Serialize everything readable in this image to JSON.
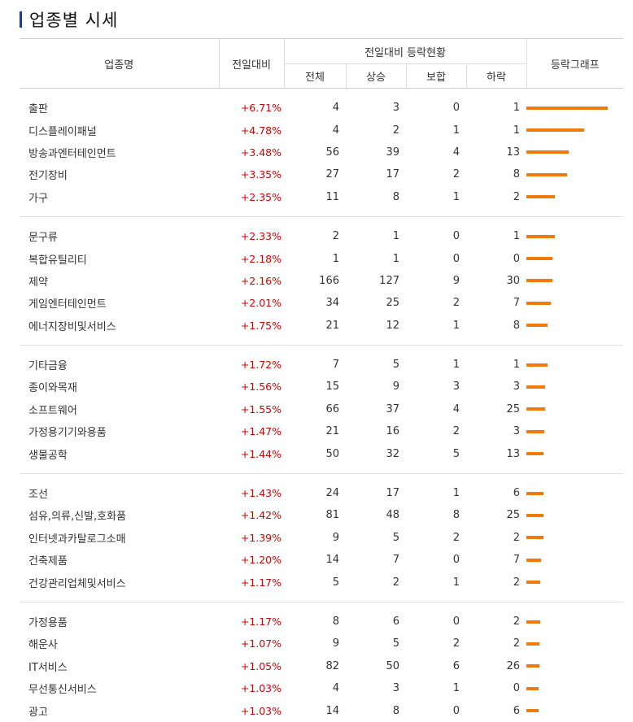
{
  "title": "업종별 시세",
  "headers": {
    "name": "업종명",
    "change": "전일대비",
    "group": "전일대비 등락현황",
    "total": "전체",
    "up": "상승",
    "flat": "보합",
    "down": "하락",
    "graph": "등락그래프"
  },
  "colors": {
    "rise": "#d60000",
    "bar": "#f07a0c",
    "accent": "#1d3a8f"
  },
  "groups": [
    [
      {
        "name": "출판",
        "change": "+6.71%",
        "change_pct": 6.71,
        "total": "4",
        "up": "3",
        "flat": "0",
        "down": "1"
      },
      {
        "name": "디스플레이패널",
        "change": "+4.78%",
        "change_pct": 4.78,
        "total": "4",
        "up": "2",
        "flat": "1",
        "down": "1"
      },
      {
        "name": "방송과엔터테인먼트",
        "change": "+3.48%",
        "change_pct": 3.48,
        "total": "56",
        "up": "39",
        "flat": "4",
        "down": "13"
      },
      {
        "name": "전기장비",
        "change": "+3.35%",
        "change_pct": 3.35,
        "total": "27",
        "up": "17",
        "flat": "2",
        "down": "8"
      },
      {
        "name": "가구",
        "change": "+2.35%",
        "change_pct": 2.35,
        "total": "11",
        "up": "8",
        "flat": "1",
        "down": "2"
      }
    ],
    [
      {
        "name": "문구류",
        "change": "+2.33%",
        "change_pct": 2.33,
        "total": "2",
        "up": "1",
        "flat": "0",
        "down": "1"
      },
      {
        "name": "복합유틸리티",
        "change": "+2.18%",
        "change_pct": 2.18,
        "total": "1",
        "up": "1",
        "flat": "0",
        "down": "0"
      },
      {
        "name": "제약",
        "change": "+2.16%",
        "change_pct": 2.16,
        "total": "166",
        "up": "127",
        "flat": "9",
        "down": "30"
      },
      {
        "name": "게임엔터테인먼트",
        "change": "+2.01%",
        "change_pct": 2.01,
        "total": "34",
        "up": "25",
        "flat": "2",
        "down": "7"
      },
      {
        "name": "에너지장비및서비스",
        "change": "+1.75%",
        "change_pct": 1.75,
        "total": "21",
        "up": "12",
        "flat": "1",
        "down": "8"
      }
    ],
    [
      {
        "name": "기타금융",
        "change": "+1.72%",
        "change_pct": 1.72,
        "total": "7",
        "up": "5",
        "flat": "1",
        "down": "1"
      },
      {
        "name": "종이와목재",
        "change": "+1.56%",
        "change_pct": 1.56,
        "total": "15",
        "up": "9",
        "flat": "3",
        "down": "3"
      },
      {
        "name": "소프트웨어",
        "change": "+1.55%",
        "change_pct": 1.55,
        "total": "66",
        "up": "37",
        "flat": "4",
        "down": "25"
      },
      {
        "name": "가정용기기와용품",
        "change": "+1.47%",
        "change_pct": 1.47,
        "total": "21",
        "up": "16",
        "flat": "2",
        "down": "3"
      },
      {
        "name": "생물공학",
        "change": "+1.44%",
        "change_pct": 1.44,
        "total": "50",
        "up": "32",
        "flat": "5",
        "down": "13"
      }
    ],
    [
      {
        "name": "조선",
        "change": "+1.43%",
        "change_pct": 1.43,
        "total": "24",
        "up": "17",
        "flat": "1",
        "down": "6"
      },
      {
        "name": "섬유,의류,신발,호화품",
        "change": "+1.42%",
        "change_pct": 1.42,
        "total": "81",
        "up": "48",
        "flat": "8",
        "down": "25"
      },
      {
        "name": "인터넷과카탈로그소매",
        "change": "+1.39%",
        "change_pct": 1.39,
        "total": "9",
        "up": "5",
        "flat": "2",
        "down": "2"
      },
      {
        "name": "건축제품",
        "change": "+1.20%",
        "change_pct": 1.2,
        "total": "14",
        "up": "7",
        "flat": "0",
        "down": "7"
      },
      {
        "name": "건강관리업체및서비스",
        "change": "+1.17%",
        "change_pct": 1.17,
        "total": "5",
        "up": "2",
        "flat": "1",
        "down": "2"
      }
    ],
    [
      {
        "name": "가정용품",
        "change": "+1.17%",
        "change_pct": 1.17,
        "total": "8",
        "up": "6",
        "flat": "0",
        "down": "2"
      },
      {
        "name": "해운사",
        "change": "+1.07%",
        "change_pct": 1.07,
        "total": "9",
        "up": "5",
        "flat": "2",
        "down": "2"
      },
      {
        "name": "IT서비스",
        "change": "+1.05%",
        "change_pct": 1.05,
        "total": "82",
        "up": "50",
        "flat": "6",
        "down": "26"
      },
      {
        "name": "무선통신서비스",
        "change": "+1.03%",
        "change_pct": 1.03,
        "total": "4",
        "up": "3",
        "flat": "1",
        "down": "0"
      },
      {
        "name": "광고",
        "change": "+1.03%",
        "change_pct": 1.03,
        "total": "14",
        "up": "8",
        "flat": "0",
        "down": "6"
      }
    ]
  ]
}
